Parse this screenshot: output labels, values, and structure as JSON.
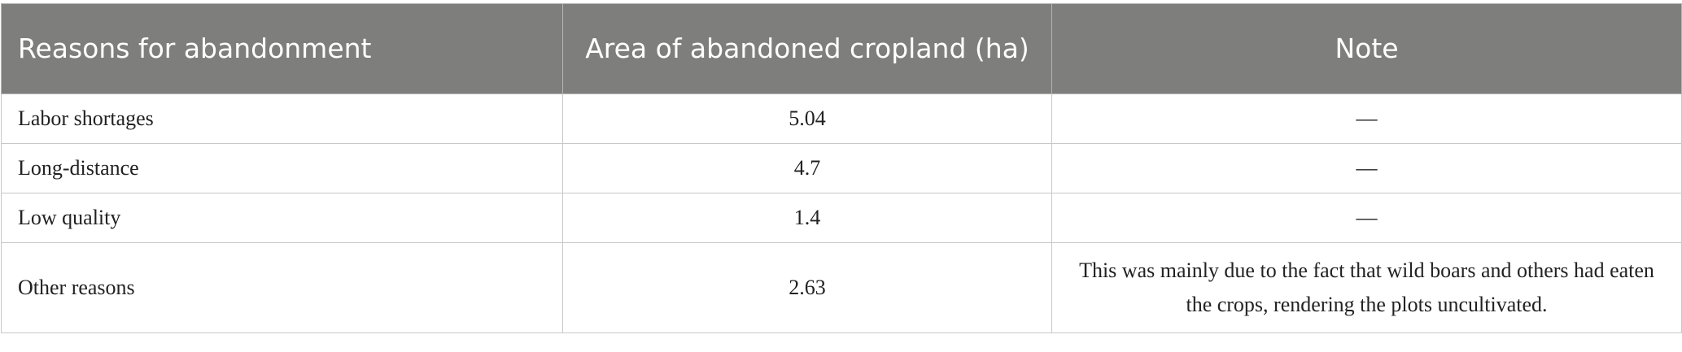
{
  "table": {
    "header": [
      "Reasons for abandonment",
      "Area of abandoned cropland (ha)",
      "Note"
    ],
    "rows": [
      [
        "Labor shortages",
        5.04,
        "—"
      ],
      [
        "Long-distance",
        4.7,
        "—"
      ],
      [
        "Low quality",
        1.4,
        "—"
      ],
      [
        "Other reasons",
        2.63,
        "This was mainly due to the fact that wild boars and others had eaten the crops, rendering the plots uncultivated."
      ]
    ]
  }
}
